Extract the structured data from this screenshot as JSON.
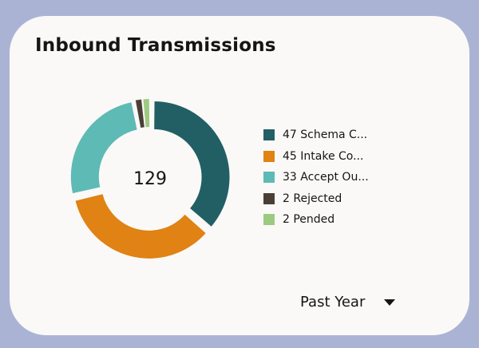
{
  "card": {
    "title": "Inbound Transmissions"
  },
  "chart_data": {
    "type": "pie",
    "total_label": "129",
    "categories": [
      "Schema C...",
      "Intake Co...",
      "Accept Ou...",
      "Rejected",
      "Pended"
    ],
    "values": [
      47,
      45,
      33,
      2,
      2
    ],
    "colors": [
      "#215f65",
      "#e08214",
      "#5ebab5",
      "#4a3f37",
      "#9cca81"
    ],
    "legend": [
      {
        "label": "47 Schema C...",
        "color": "#215f65"
      },
      {
        "label": "45 Intake Co...",
        "color": "#e08214"
      },
      {
        "label": "33 Accept Ou...",
        "color": "#5ebab5"
      },
      {
        "label": "2 Rejected",
        "color": "#4a3f37"
      },
      {
        "label": "2 Pended",
        "color": "#9cca81"
      }
    ],
    "legend_position": "right"
  },
  "filter": {
    "selected": "Past Year",
    "icon": "caret-down-icon"
  }
}
